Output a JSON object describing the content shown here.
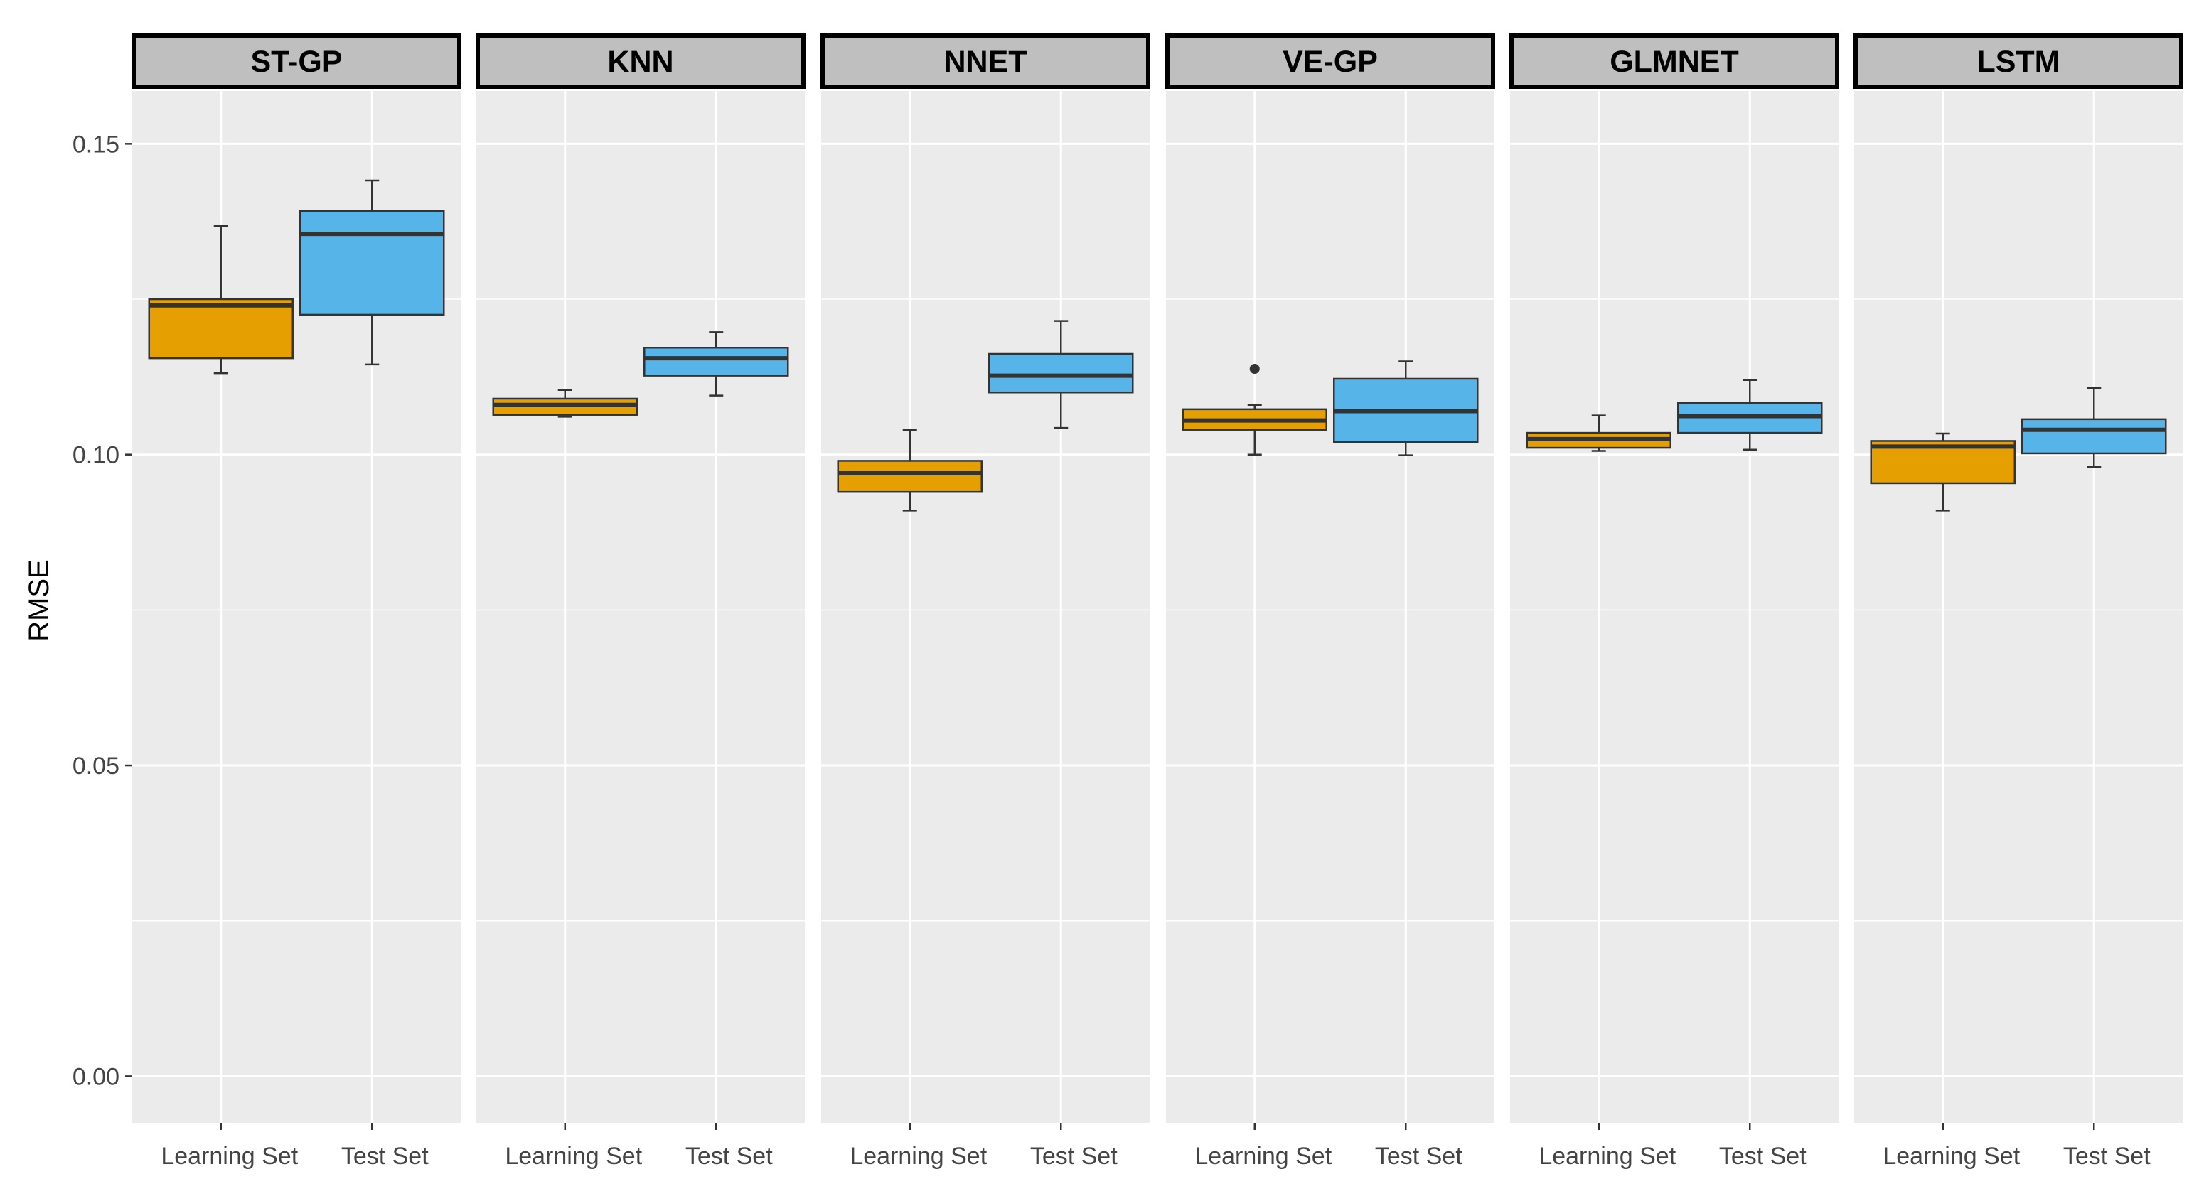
{
  "chart_data": {
    "type": "boxplot",
    "title": "",
    "xlabel": "",
    "ylabel": "RMSE",
    "ylim": [
      -0.0075,
      0.1585
    ],
    "y_ticks": [
      0.0,
      0.05,
      0.1,
      0.15
    ],
    "y_tick_labels": [
      "0.00",
      "0.05",
      "0.10",
      "0.15"
    ],
    "categories": [
      "Learning Set",
      "Test Set"
    ],
    "colors": {
      "Learning Set": "#E69F00",
      "Test Set": "#56B4E9"
    },
    "panels": [
      {
        "name": "ST-GP",
        "boxes": [
          {
            "category": "Learning Set",
            "min": 0.1131,
            "q1": 0.1155,
            "median": 0.124,
            "q3": 0.125,
            "max": 0.1368,
            "outliers": []
          },
          {
            "category": "Test Set",
            "min": 0.1145,
            "q1": 0.1225,
            "median": 0.1355,
            "q3": 0.1392,
            "max": 0.1441,
            "outliers": []
          }
        ]
      },
      {
        "name": "KNN",
        "boxes": [
          {
            "category": "Learning Set",
            "min": 0.1061,
            "q1": 0.1064,
            "median": 0.108,
            "q3": 0.109,
            "max": 0.1104,
            "outliers": []
          },
          {
            "category": "Test Set",
            "min": 0.1095,
            "q1": 0.1127,
            "median": 0.1155,
            "q3": 0.1172,
            "max": 0.1197,
            "outliers": []
          }
        ]
      },
      {
        "name": "NNET",
        "boxes": [
          {
            "category": "Learning Set",
            "min": 0.091,
            "q1": 0.094,
            "median": 0.097,
            "q3": 0.099,
            "max": 0.104,
            "outliers": []
          },
          {
            "category": "Test Set",
            "min": 0.1043,
            "q1": 0.11,
            "median": 0.1127,
            "q3": 0.1162,
            "max": 0.1215,
            "outliers": []
          }
        ]
      },
      {
        "name": "VE-GP",
        "boxes": [
          {
            "category": "Learning Set",
            "min": 0.1,
            "q1": 0.104,
            "median": 0.1055,
            "q3": 0.1073,
            "max": 0.108,
            "outliers": [
              0.1138
            ]
          },
          {
            "category": "Test Set",
            "min": 0.0999,
            "q1": 0.102,
            "median": 0.107,
            "q3": 0.1122,
            "max": 0.115,
            "outliers": []
          }
        ]
      },
      {
        "name": "GLMNET",
        "boxes": [
          {
            "category": "Learning Set",
            "min": 0.1006,
            "q1": 0.1011,
            "median": 0.1025,
            "q3": 0.1035,
            "max": 0.1063,
            "outliers": []
          },
          {
            "category": "Test Set",
            "min": 0.1008,
            "q1": 0.1035,
            "median": 0.1062,
            "q3": 0.1083,
            "max": 0.112,
            "outliers": []
          }
        ]
      },
      {
        "name": "LSTM",
        "boxes": [
          {
            "category": "Learning Set",
            "min": 0.091,
            "q1": 0.0954,
            "median": 0.1013,
            "q3": 0.1022,
            "max": 0.1034,
            "outliers": []
          },
          {
            "category": "Test Set",
            "min": 0.098,
            "q1": 0.1002,
            "median": 0.104,
            "q3": 0.1057,
            "max": 0.1107,
            "outliers": []
          }
        ]
      }
    ]
  }
}
